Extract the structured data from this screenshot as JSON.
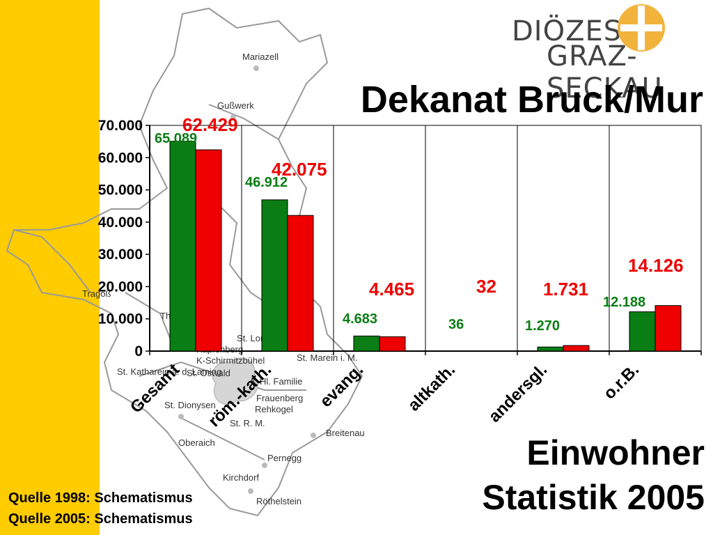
{
  "logo": {
    "line1": "DIÖZESE",
    "line2": "GRAZ-SECKAU"
  },
  "title": "Dekanat Bruck/Mur",
  "subtitle": [
    "Einwohner",
    "Statistik 2005"
  ],
  "sources": [
    "Quelle 1998: Schematismus",
    "Quelle 2005: Schematismus"
  ],
  "map_labels": [
    "Mariazell",
    "Gußwerk",
    "Tragöß",
    "Thörl",
    "St. Lorenzen i. M.",
    "Kapfenberg",
    "K-Schirmitzbühel",
    "St. Marein i. M.",
    "St. Katharein a. d. Laming",
    "St. Oswald",
    "K-Hl. Familie",
    "Frauenberg",
    "Rehkogel",
    "St. Dionysen",
    "Oberaich",
    "St. R. M.",
    "Breitenau",
    "Pernegg",
    "Kirchdorf",
    "Röthelstein"
  ],
  "colors": {
    "y1998": "#0a7d14",
    "y2005": "#ee0000",
    "band": "#ffcc00"
  },
  "chart_data": {
    "type": "bar",
    "categories": [
      "Gesamt",
      "röm.-kath.",
      "evang.",
      "altkath.",
      "andersgl.",
      "o.r.B."
    ],
    "series": [
      {
        "name": "",
        "values": [
          65089,
          46912,
          4683,
          36,
          1270,
          12188
        ],
        "labels": [
          "65.089",
          "46.912",
          "4.683",
          "36",
          "1.270",
          "12.188"
        ]
      },
      {
        "name": "",
        "values": [
          62429,
          42075,
          4465,
          32,
          1731,
          14126
        ],
        "labels": [
          "62.429",
          "42.075",
          "4.465",
          "32",
          "1.731",
          "14.126"
        ]
      }
    ],
    "ylim": [
      0,
      70000
    ],
    "yticks": [
      0,
      10000,
      20000,
      30000,
      40000,
      50000,
      60000,
      70000
    ],
    "ytick_labels": [
      "0",
      "10.000",
      "20.000",
      "30.000",
      "40.000",
      "50.000",
      "60.000",
      "70.000"
    ],
    "grid": "vertical",
    "legend": "none"
  }
}
